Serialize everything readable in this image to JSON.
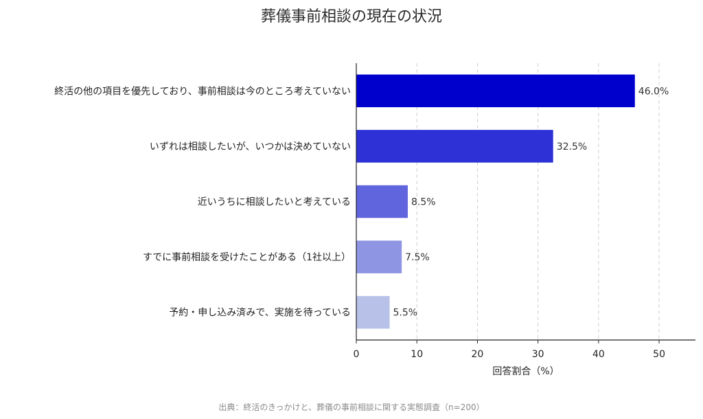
{
  "chart_data": {
    "type": "bar",
    "orientation": "horizontal",
    "title": "葬儀事前相談の現在の状況",
    "xlabel": "回答割合（%）",
    "ylabel": "",
    "xlim": [
      0,
      56
    ],
    "xticks": [
      0,
      10,
      20,
      30,
      40,
      50
    ],
    "grid": "vertical dashed",
    "categories": [
      "終活の他の項目を優先しており、事前相談は今のところ考えていない",
      "いずれは相談したいが、いつかは決めていない",
      "近いうちに相談したいと考えている",
      "すでに事前相談を受けたことがある（1社以上）",
      "予約・申し込み済みで、実施を待っている"
    ],
    "values": [
      46.0,
      32.5,
      8.5,
      7.5,
      5.5
    ],
    "value_labels": [
      "46.0%",
      "32.5%",
      "8.5%",
      "7.5%",
      "5.5%"
    ],
    "bar_colors": [
      "#0000cd",
      "#2e32d6",
      "#6064dd",
      "#8e95e3",
      "#b8c2e8"
    ]
  },
  "source": "出典：終活のきっかけと、葬儀の事前相談に関する実態調査（n=200）"
}
